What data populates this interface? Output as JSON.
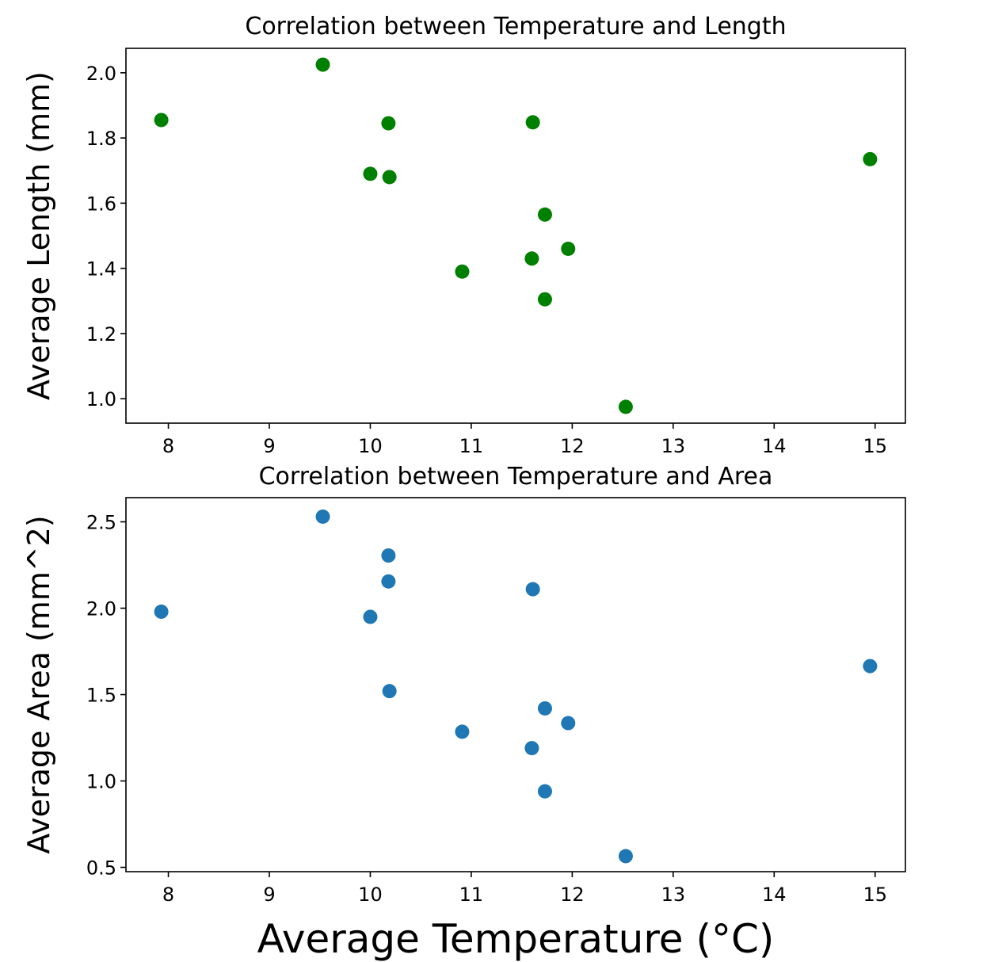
{
  "figure": {
    "xlabel": "Average Temperature (°C)"
  },
  "chart_data": [
    {
      "type": "scatter",
      "title": "Correlation between Temperature and Length",
      "xlabel": "",
      "ylabel": "Average Length (mm)",
      "color": "#008000",
      "xlim": [
        7.58,
        15.3
      ],
      "ylim": [
        0.925,
        2.075
      ],
      "xticks": [
        8,
        9,
        10,
        11,
        12,
        13,
        14,
        15
      ],
      "xtick_labels": [
        "8",
        "9",
        "10",
        "11",
        "12",
        "13",
        "14",
        "15"
      ],
      "yticks": [
        1.0,
        1.2,
        1.4,
        1.6,
        1.8,
        2.0
      ],
      "ytick_labels": [
        "1.0",
        "1.2",
        "1.4",
        "1.6",
        "1.8",
        "2.0"
      ],
      "grid": false,
      "points": [
        {
          "x": 7.93,
          "y": 1.855
        },
        {
          "x": 9.53,
          "y": 2.025
        },
        {
          "x": 10.0,
          "y": 1.69
        },
        {
          "x": 10.18,
          "y": 1.845
        },
        {
          "x": 10.19,
          "y": 1.68
        },
        {
          "x": 10.91,
          "y": 1.39
        },
        {
          "x": 11.6,
          "y": 1.43
        },
        {
          "x": 11.61,
          "y": 1.848
        },
        {
          "x": 11.73,
          "y": 1.565
        },
        {
          "x": 11.73,
          "y": 1.305
        },
        {
          "x": 11.96,
          "y": 1.46
        },
        {
          "x": 12.53,
          "y": 0.975
        },
        {
          "x": 14.95,
          "y": 1.735
        }
      ]
    },
    {
      "type": "scatter",
      "title": "Correlation between Temperature and Area",
      "xlabel": "Average Temperature (°C)",
      "ylabel": "Average Area (mm^2)",
      "color": "#1f77b4",
      "xlim": [
        7.58,
        15.3
      ],
      "ylim": [
        0.475,
        2.64
      ],
      "xticks": [
        8,
        9,
        10,
        11,
        12,
        13,
        14,
        15
      ],
      "xtick_labels": [
        "8",
        "9",
        "10",
        "11",
        "12",
        "13",
        "14",
        "15"
      ],
      "yticks": [
        0.5,
        1.0,
        1.5,
        2.0,
        2.5
      ],
      "ytick_labels": [
        "0.5",
        "1.0",
        "1.5",
        "2.0",
        "2.5"
      ],
      "grid": false,
      "points": [
        {
          "x": 7.93,
          "y": 1.98
        },
        {
          "x": 9.53,
          "y": 2.53
        },
        {
          "x": 10.0,
          "y": 1.95
        },
        {
          "x": 10.18,
          "y": 2.305
        },
        {
          "x": 10.18,
          "y": 2.155
        },
        {
          "x": 10.19,
          "y": 1.52
        },
        {
          "x": 10.91,
          "y": 1.285
        },
        {
          "x": 11.6,
          "y": 1.19
        },
        {
          "x": 11.61,
          "y": 2.11
        },
        {
          "x": 11.73,
          "y": 1.42
        },
        {
          "x": 11.73,
          "y": 0.94
        },
        {
          "x": 11.96,
          "y": 1.335
        },
        {
          "x": 12.53,
          "y": 0.565
        },
        {
          "x": 14.95,
          "y": 1.665
        }
      ]
    }
  ]
}
